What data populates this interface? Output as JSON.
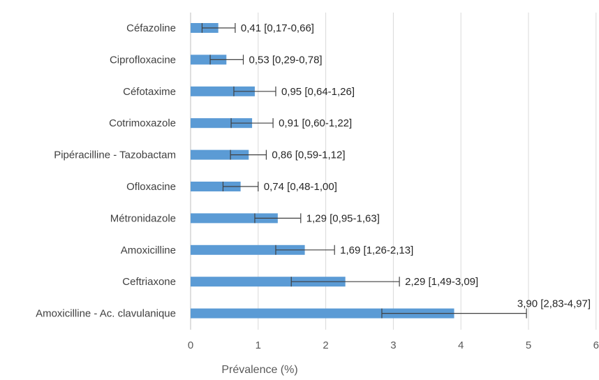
{
  "chart_data": {
    "type": "bar",
    "orientation": "horizontal",
    "categories": [
      "Céfazoline",
      "Ciprofloxacine",
      "Céfotaxime",
      "Cotrimoxazole",
      "Pipéracilline - Tazobactam",
      "Ofloxacine",
      "Métronidazole",
      "Amoxicilline",
      "Ceftriaxone",
      "Amoxicilline - Ac. clavulanique"
    ],
    "values": [
      0.41,
      0.53,
      0.95,
      0.91,
      0.86,
      0.74,
      1.29,
      1.69,
      2.29,
      3.9
    ],
    "ci_low": [
      0.17,
      0.29,
      0.64,
      0.6,
      0.59,
      0.48,
      0.95,
      1.26,
      1.49,
      2.83
    ],
    "ci_high": [
      0.66,
      0.78,
      1.26,
      1.22,
      1.12,
      1.0,
      1.63,
      2.13,
      3.09,
      4.97
    ],
    "data_labels": [
      "0,41 [0,17-0,66]",
      "0,53 [0,29-0,78]",
      "0,95 [0,64-1,26]",
      "0,91 [0,60-1,22]",
      "0,86 [0,59-1,12]",
      "0,74 [0,48-1,00]",
      "1,29 [0,95-1,63]",
      "1,69 [1,26-2,13]",
      "2,29 [1,49-3,09]",
      "3,90 [2,83-4,97]"
    ],
    "xlabel": "Prévalence (%)",
    "ylabel": "",
    "title": "",
    "xlim": [
      0,
      6
    ],
    "xticks": [
      0,
      1,
      2,
      3,
      4,
      5,
      6
    ],
    "xtick_labels": [
      "0",
      "1",
      "2",
      "3",
      "4",
      "5",
      "6"
    ],
    "grid": "vertical",
    "legend": "none",
    "colors": {
      "bar": "#5b9bd5",
      "grid": "#d9d9d9",
      "error_bar": "#404040"
    }
  }
}
